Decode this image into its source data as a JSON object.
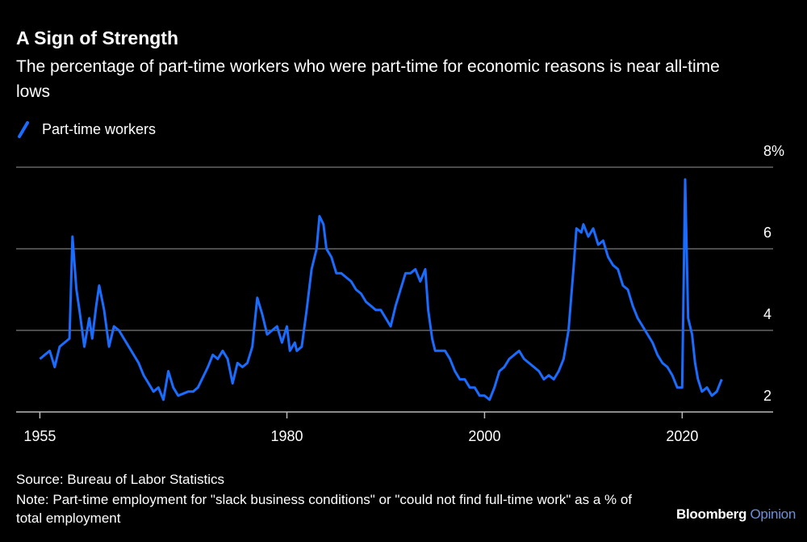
{
  "title": "A Sign of Strength",
  "subtitle": "The percentage of part-time workers who were part-time for economic reasons is near all-time lows",
  "source": "Source: Bureau of Labor Statistics",
  "note": "Note: Part-time employment for \"slack business conditions\" or \"could not find full-time work\" as a % of total employment",
  "brand": {
    "name": "Bloomberg",
    "product": "Opinion"
  },
  "chart_data": {
    "type": "line",
    "x": [
      1955,
      1955.5,
      1956,
      1956.5,
      1957,
      1957.5,
      1958,
      1958.3,
      1958.7,
      1959,
      1959.5,
      1960,
      1960.3,
      1960.7,
      1961,
      1961.5,
      1962,
      1962.5,
      1963,
      1963.5,
      1964,
      1965,
      1965.5,
      1966,
      1966.5,
      1967,
      1967.5,
      1968,
      1968.5,
      1969,
      1970,
      1970.5,
      1971,
      1972,
      1972.5,
      1973,
      1973.5,
      1974,
      1974.5,
      1975,
      1975.5,
      1976,
      1976.5,
      1977,
      1977.5,
      1978,
      1978.5,
      1979,
      1979.5,
      1980,
      1980.3,
      1980.8,
      1981,
      1981.5,
      1982,
      1982.5,
      1983,
      1983.3,
      1983.7,
      1984,
      1984.5,
      1985,
      1985.5,
      1986,
      1986.5,
      1987,
      1987.5,
      1988,
      1988.5,
      1989,
      1989.5,
      1990,
      1990.5,
      1991,
      1991.5,
      1992,
      1992.5,
      1993,
      1993.5,
      1994,
      1994.3,
      1994.7,
      1995,
      1995.5,
      1996,
      1996.5,
      1997,
      1997.5,
      1998,
      1998.5,
      1999,
      1999.5,
      2000,
      2000.5,
      2001,
      2001.5,
      2002,
      2002.5,
      2003,
      2003.5,
      2004,
      2004.5,
      2005,
      2005.5,
      2006,
      2006.5,
      2007,
      2007.5,
      2008,
      2008.5,
      2009,
      2009.3,
      2009.8,
      2010,
      2010.5,
      2011,
      2011.5,
      2012,
      2012.5,
      2013,
      2013.5,
      2014,
      2014.5,
      2015,
      2015.5,
      2016,
      2016.5,
      2017,
      2017.5,
      2018,
      2018.5,
      2019,
      2019.5,
      2020,
      2020.3,
      2020.6,
      2021,
      2021.3,
      2021.6,
      2022,
      2022.5,
      2023,
      2023.5,
      2024
    ],
    "series": [
      {
        "name": "Part-time workers",
        "color": "#1a6cff",
        "values": [
          3.3,
          3.4,
          3.5,
          3.1,
          3.6,
          3.7,
          3.8,
          6.3,
          5.0,
          4.5,
          3.6,
          4.3,
          3.8,
          4.6,
          5.1,
          4.5,
          3.6,
          4.1,
          4.0,
          3.8,
          3.6,
          3.2,
          2.9,
          2.7,
          2.5,
          2.6,
          2.3,
          3.0,
          2.6,
          2.4,
          2.5,
          2.5,
          2.6,
          3.1,
          3.4,
          3.3,
          3.5,
          3.3,
          2.7,
          3.2,
          3.1,
          3.2,
          3.6,
          4.8,
          4.4,
          3.9,
          4.0,
          4.1,
          3.7,
          4.1,
          3.5,
          3.7,
          3.5,
          3.6,
          4.5,
          5.5,
          6.0,
          6.8,
          6.6,
          6.0,
          5.8,
          5.4,
          5.4,
          5.3,
          5.2,
          5.0,
          4.9,
          4.7,
          4.6,
          4.5,
          4.5,
          4.3,
          4.1,
          4.6,
          5.0,
          5.4,
          5.4,
          5.5,
          5.2,
          5.5,
          4.5,
          3.8,
          3.5,
          3.5,
          3.5,
          3.3,
          3.0,
          2.8,
          2.8,
          2.6,
          2.6,
          2.4,
          2.4,
          2.3,
          2.6,
          3.0,
          3.1,
          3.3,
          3.4,
          3.5,
          3.3,
          3.2,
          3.1,
          3.0,
          2.8,
          2.9,
          2.8,
          3.0,
          3.3,
          4.0,
          5.5,
          6.5,
          6.4,
          6.6,
          6.3,
          6.5,
          6.1,
          6.2,
          5.8,
          5.6,
          5.5,
          5.1,
          5.0,
          4.6,
          4.3,
          4.1,
          3.9,
          3.7,
          3.4,
          3.2,
          3.1,
          2.9,
          2.6,
          2.6,
          7.7,
          4.3,
          3.9,
          3.2,
          2.8,
          2.5,
          2.6,
          2.4,
          2.5,
          2.8
        ]
      }
    ],
    "xlim": [
      1952.6,
      2029.2
    ],
    "xticks": [
      1955,
      1980,
      2000,
      2020
    ],
    "ylim": [
      2,
      8
    ],
    "yticks": [
      2,
      4,
      6,
      {
        "value": 8,
        "label": "8%"
      }
    ],
    "grid": true
  }
}
